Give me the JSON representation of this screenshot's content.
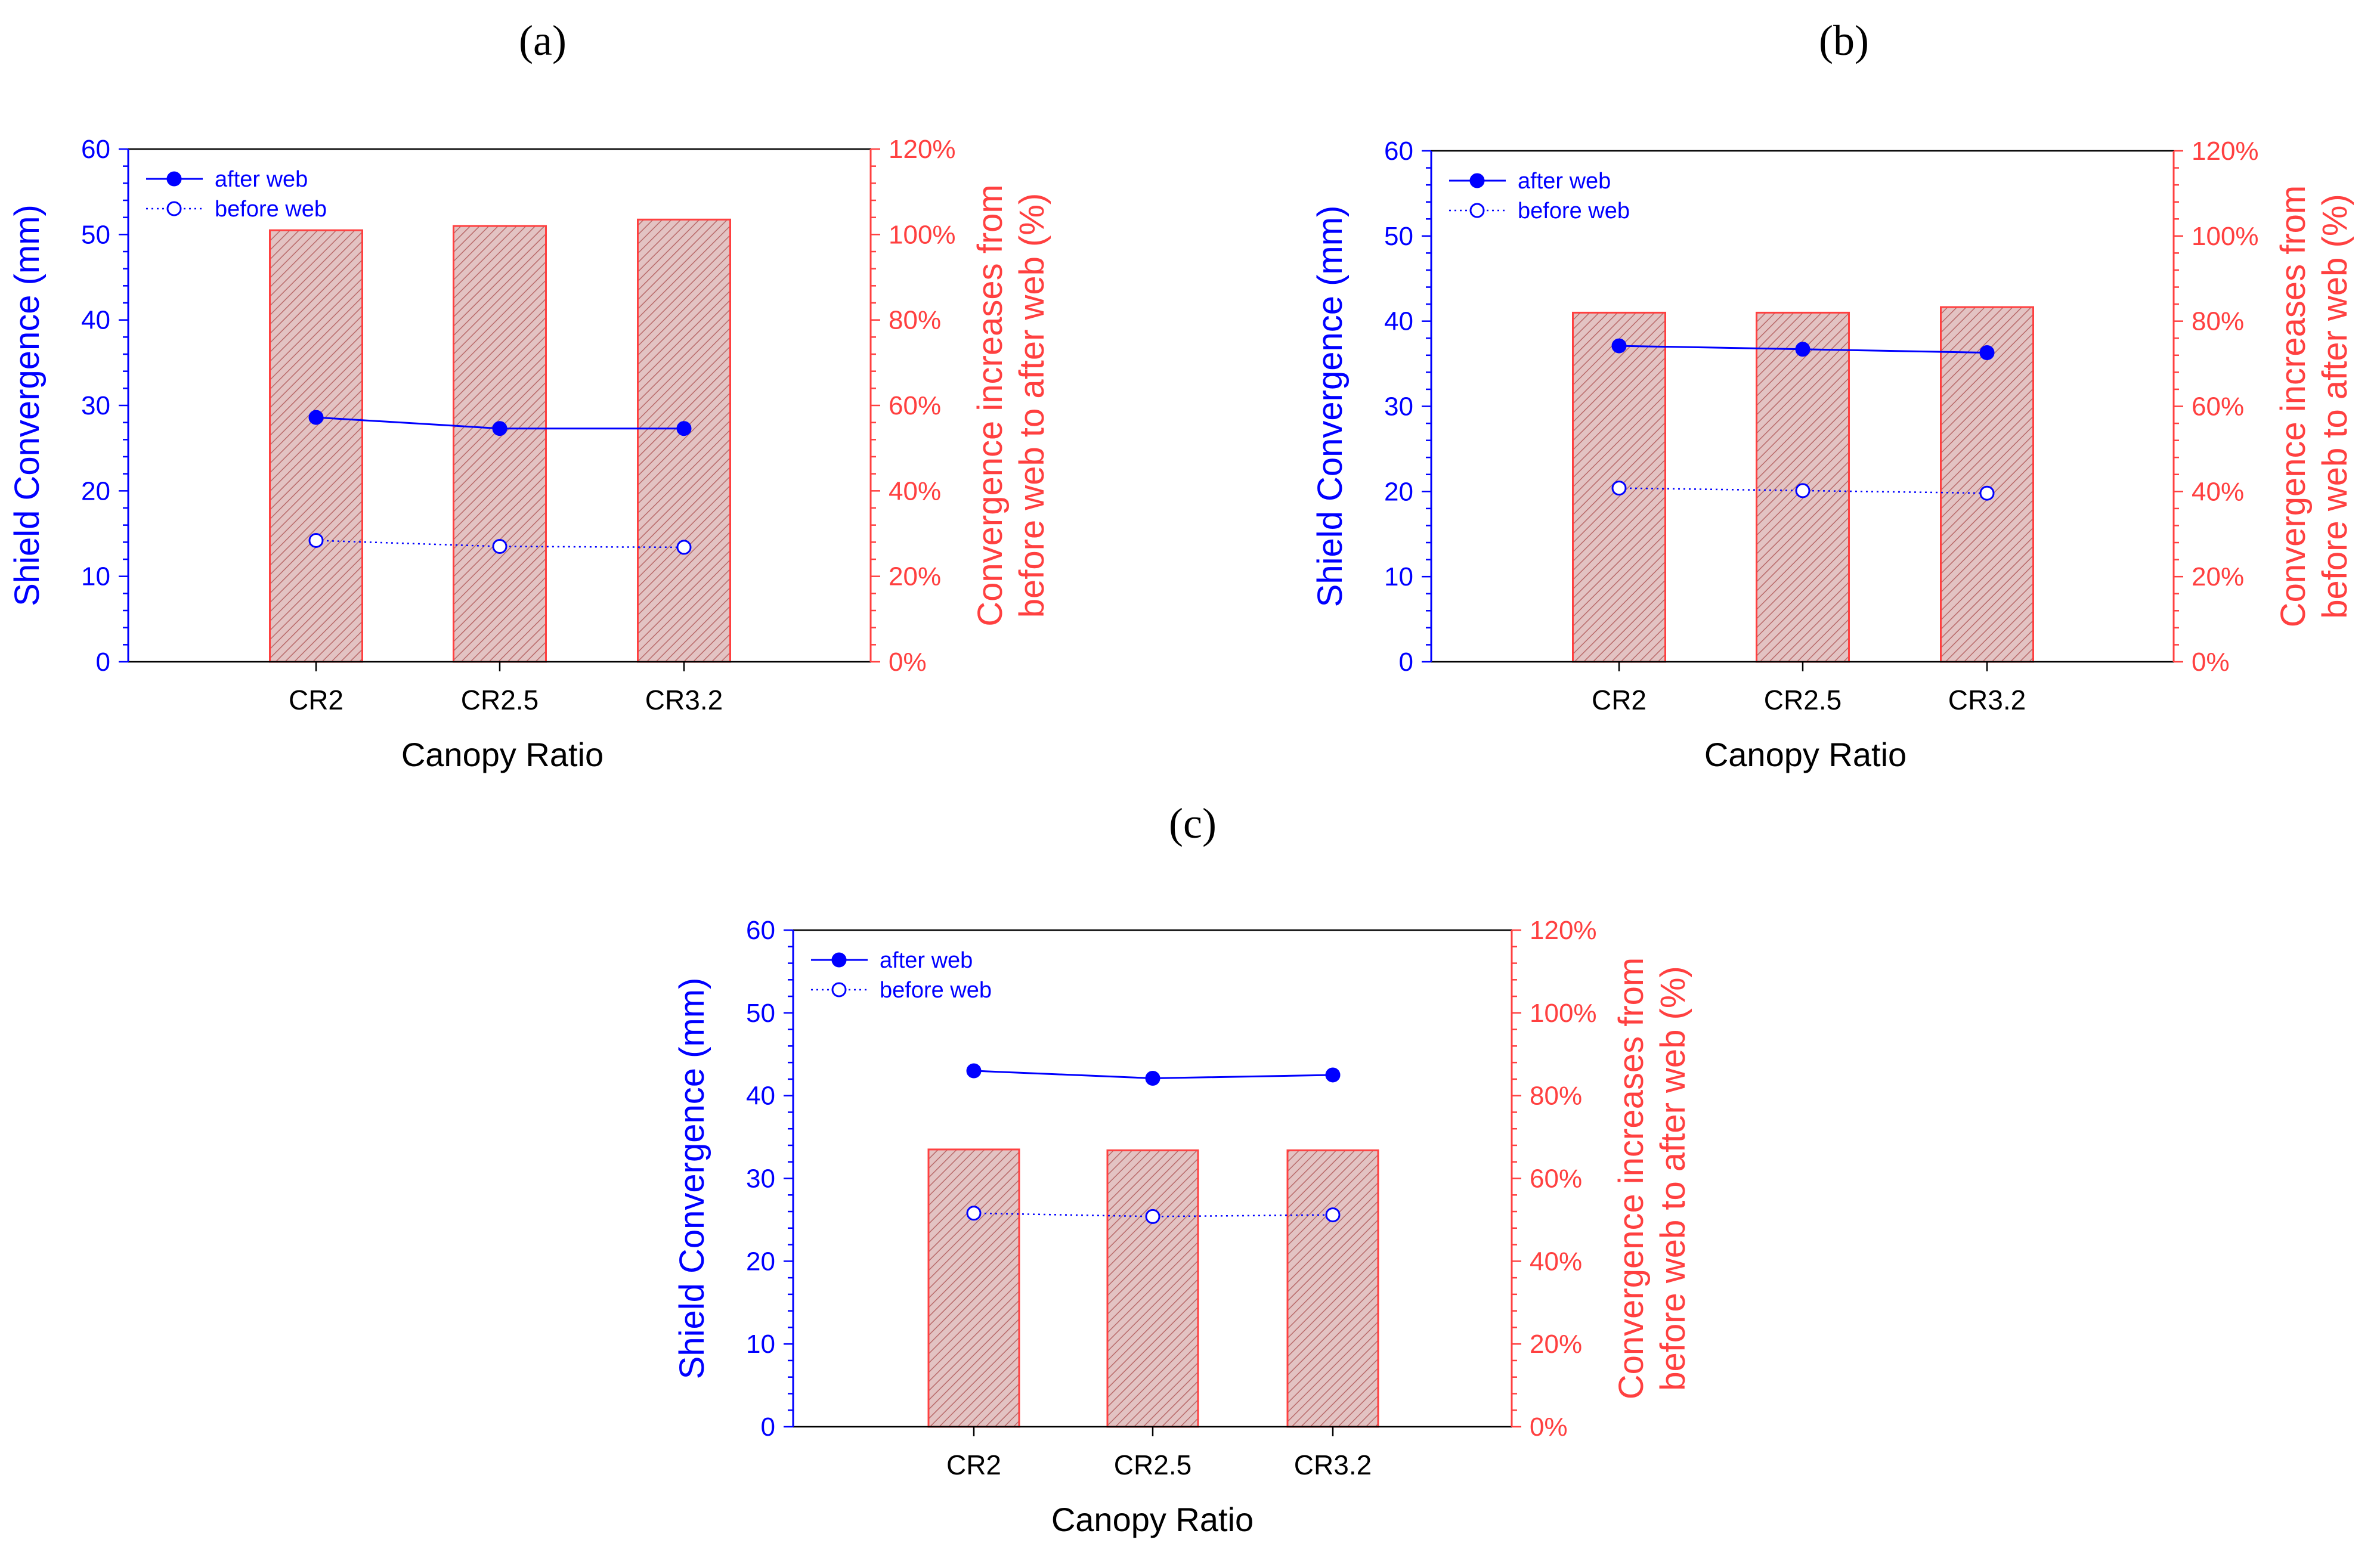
{
  "colors": {
    "after_web": "#0000ff",
    "before_web": "#0000ff",
    "bars": "#ff4040",
    "bar_fill": "#d9a8a8",
    "axis": "#000000"
  },
  "chart_data": [
    {
      "panel_label": "(a)",
      "type": "bar+line",
      "categories": [
        "CR2",
        "CR2.5",
        "CR3.2"
      ],
      "xlabel": "Canopy Ratio",
      "ylabel": "Shield Convergence (mm)",
      "y2label_line1": "Convergence increases from",
      "y2label_line2": "before web to after web (%)",
      "ylim": [
        0,
        60
      ],
      "yticks": [
        "0",
        "10",
        "20",
        "30",
        "40",
        "50",
        "60"
      ],
      "y2lim": [
        0,
        120
      ],
      "y2ticks": [
        "0%",
        "20%",
        "40%",
        "60%",
        "80%",
        "100%",
        "120%"
      ],
      "legend": [
        "after web",
        "before web"
      ],
      "legend_position": "top-left",
      "series": [
        {
          "name": "after web",
          "axis": "left",
          "marker": "filled-circle",
          "line": "solid",
          "values": [
            28.6,
            27.3,
            27.3
          ]
        },
        {
          "name": "before web",
          "axis": "left",
          "marker": "open-circle",
          "line": "dotted",
          "values": [
            14.2,
            13.5,
            13.4
          ]
        }
      ],
      "bars": {
        "axis": "right",
        "values": [
          101,
          102,
          103.5
        ]
      }
    },
    {
      "panel_label": "(b)",
      "type": "bar+line",
      "categories": [
        "CR2",
        "CR2.5",
        "CR3.2"
      ],
      "xlabel": "Canopy Ratio",
      "ylabel": "Shield Convergence (mm)",
      "y2label_line1": "Convergence increases from",
      "y2label_line2": "before web to after web (%)",
      "ylim": [
        0,
        60
      ],
      "yticks": [
        "0",
        "10",
        "20",
        "30",
        "40",
        "50",
        "60"
      ],
      "y2lim": [
        0,
        120
      ],
      "y2ticks": [
        "0%",
        "20%",
        "40%",
        "60%",
        "80%",
        "100%",
        "120%"
      ],
      "legend": [
        "after web",
        "before web"
      ],
      "legend_position": "top-left",
      "series": [
        {
          "name": "after web",
          "axis": "left",
          "marker": "filled-circle",
          "line": "solid",
          "values": [
            37.1,
            36.7,
            36.3
          ]
        },
        {
          "name": "before web",
          "axis": "left",
          "marker": "open-circle",
          "line": "dotted",
          "values": [
            20.4,
            20.1,
            19.8
          ]
        }
      ],
      "bars": {
        "axis": "right",
        "values": [
          82,
          82,
          83.3
        ]
      }
    },
    {
      "panel_label": "(c)",
      "type": "bar+line",
      "categories": [
        "CR2",
        "CR2.5",
        "CR3.2"
      ],
      "xlabel": "Canopy Ratio",
      "ylabel": "Shield Convergence (mm)",
      "y2label_line1": "Convergence increases from",
      "y2label_line2": "before web to after web (%)",
      "ylim": [
        0,
        60
      ],
      "yticks": [
        "0",
        "10",
        "20",
        "30",
        "40",
        "50",
        "60"
      ],
      "y2lim": [
        0,
        120
      ],
      "y2ticks": [
        "0%",
        "20%",
        "40%",
        "60%",
        "80%",
        "100%",
        "120%"
      ],
      "legend": [
        "after web",
        "before web"
      ],
      "legend_position": "top-left",
      "series": [
        {
          "name": "after web",
          "axis": "left",
          "marker": "filled-circle",
          "line": "solid",
          "values": [
            43.0,
            42.1,
            42.5
          ]
        },
        {
          "name": "before web",
          "axis": "left",
          "marker": "open-circle",
          "line": "dotted",
          "values": [
            25.8,
            25.4,
            25.6
          ]
        }
      ],
      "bars": {
        "axis": "right",
        "values": [
          67,
          66.8,
          66.8
        ]
      }
    }
  ]
}
